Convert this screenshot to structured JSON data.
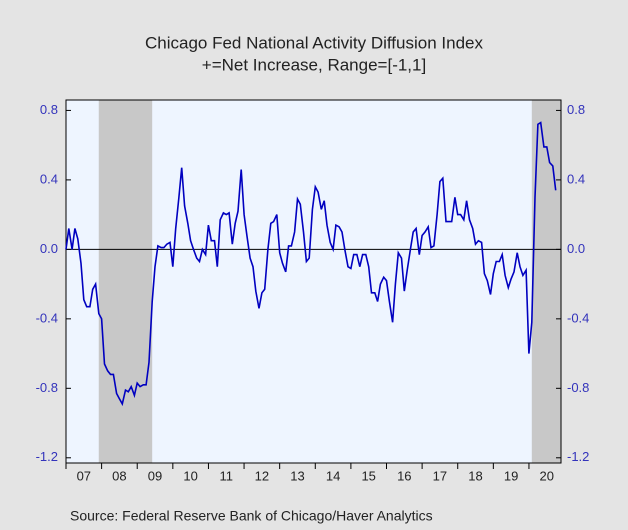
{
  "chart_data": {
    "type": "line",
    "title": "Chicago Fed National Activity Diffusion Index",
    "subtitle": "+=Net Increase, Range=[-1,1]",
    "source": "Source:  Federal Reserve Bank of Chicago/Haver Analytics",
    "x": [
      2007,
      2007.08,
      2007.17,
      2007.25,
      2007.33,
      2007.42,
      2007.5,
      2007.58,
      2007.67,
      2007.75,
      2007.83,
      2007.92,
      2008,
      2008.08,
      2008.17,
      2008.25,
      2008.33,
      2008.42,
      2008.5,
      2008.58,
      2008.67,
      2008.75,
      2008.83,
      2008.92,
      2009,
      2009.08,
      2009.17,
      2009.25,
      2009.33,
      2009.42,
      2009.5,
      2009.58,
      2009.67,
      2009.75,
      2009.83,
      2009.92,
      2010,
      2010.08,
      2010.17,
      2010.25,
      2010.33,
      2010.42,
      2010.5,
      2010.58,
      2010.67,
      2010.75,
      2010.83,
      2010.92,
      2011,
      2011.08,
      2011.17,
      2011.25,
      2011.33,
      2011.42,
      2011.5,
      2011.58,
      2011.67,
      2011.75,
      2011.83,
      2011.92,
      2012,
      2012.08,
      2012.17,
      2012.25,
      2012.33,
      2012.42,
      2012.5,
      2012.58,
      2012.67,
      2012.75,
      2012.83,
      2012.92,
      2013,
      2013.08,
      2013.17,
      2013.25,
      2013.33,
      2013.42,
      2013.5,
      2013.58,
      2013.67,
      2013.75,
      2013.83,
      2013.92,
      2014,
      2014.08,
      2014.17,
      2014.25,
      2014.33,
      2014.42,
      2014.5,
      2014.58,
      2014.67,
      2014.75,
      2014.83,
      2014.92,
      2015,
      2015.08,
      2015.17,
      2015.25,
      2015.33,
      2015.42,
      2015.5,
      2015.58,
      2015.67,
      2015.75,
      2015.83,
      2015.92,
      2016,
      2016.08,
      2016.17,
      2016.25,
      2016.33,
      2016.42,
      2016.5,
      2016.58,
      2016.67,
      2016.75,
      2016.83,
      2016.92,
      2017,
      2017.08,
      2017.17,
      2017.25,
      2017.33,
      2017.42,
      2017.5,
      2017.58,
      2017.67,
      2017.75,
      2017.83,
      2017.92,
      2018,
      2018.08,
      2018.17,
      2018.25,
      2018.33,
      2018.42,
      2018.5,
      2018.58,
      2018.67,
      2018.75,
      2018.83,
      2018.92,
      2019,
      2019.08,
      2019.17,
      2019.25,
      2019.33,
      2019.42,
      2019.5,
      2019.58,
      2019.67,
      2019.75,
      2019.83,
      2019.92,
      2020,
      2020.08,
      2020.17,
      2020.25,
      2020.33,
      2020.42,
      2020.5,
      2020.58,
      2020.67,
      2020.75
    ],
    "series": [
      {
        "color": "#0000c0",
        "values": [
          0.0,
          0.12,
          0.0,
          0.12,
          0.06,
          -0.08,
          -0.29,
          -0.33,
          -0.33,
          -0.23,
          -0.2,
          -0.37,
          -0.4,
          -0.66,
          -0.7,
          -0.72,
          -0.72,
          -0.83,
          -0.86,
          -0.89,
          -0.81,
          -0.82,
          -0.79,
          -0.84,
          -0.77,
          -0.79,
          -0.78,
          -0.78,
          -0.65,
          -0.3,
          -0.1,
          0.02,
          0.01,
          0.01,
          0.03,
          0.04,
          -0.1,
          0.12,
          0.3,
          0.47,
          0.25,
          0.15,
          0.05,
          0.0,
          -0.05,
          -0.07,
          0.0,
          -0.03,
          0.14,
          0.05,
          0.05,
          -0.1,
          0.17,
          0.21,
          0.2,
          0.21,
          0.03,
          0.15,
          0.22,
          0.46,
          0.2,
          0.08,
          -0.05,
          -0.1,
          -0.24,
          -0.34,
          -0.25,
          -0.23,
          0.0,
          0.15,
          0.16,
          0.2,
          -0.02,
          -0.08,
          -0.13,
          0.02,
          0.02,
          0.1,
          0.29,
          0.26,
          0.1,
          -0.07,
          -0.05,
          0.23,
          0.36,
          0.33,
          0.23,
          0.28,
          0.14,
          0.04,
          0.0,
          0.14,
          0.13,
          0.1,
          0.0,
          -0.1,
          -0.11,
          -0.03,
          -0.03,
          -0.1,
          -0.03,
          -0.03,
          -0.1,
          -0.25,
          -0.25,
          -0.3,
          -0.2,
          -0.16,
          -0.18,
          -0.3,
          -0.42,
          -0.2,
          -0.02,
          -0.05,
          -0.24,
          -0.12,
          0.0,
          0.1,
          0.12,
          -0.03,
          0.08,
          0.1,
          0.13,
          0.01,
          0.02,
          0.2,
          0.39,
          0.41,
          0.16,
          0.16,
          0.16,
          0.3,
          0.2,
          0.2,
          0.17,
          0.28,
          0.17,
          0.12,
          0.03,
          0.05,
          0.04,
          -0.14,
          -0.18,
          -0.26,
          -0.14,
          -0.07,
          -0.07,
          -0.03,
          -0.15,
          -0.22,
          -0.17,
          -0.13,
          -0.02,
          -0.1,
          -0.15,
          -0.12,
          -0.6,
          -0.42,
          0.3,
          0.72,
          0.73,
          0.59,
          0.59,
          0.5,
          0.48,
          0.34
        ]
      }
    ],
    "recessions": [
      [
        2007.92,
        2009.42
      ],
      [
        2020.08,
        2020.9
      ]
    ],
    "xlim": [
      2007,
      2020.9
    ],
    "xticks": [
      {
        "value": 2007,
        "label": "07"
      },
      {
        "value": 2008,
        "label": "08"
      },
      {
        "value": 2009,
        "label": "09"
      },
      {
        "value": 2010,
        "label": "10"
      },
      {
        "value": 2011,
        "label": "11"
      },
      {
        "value": 2012,
        "label": "12"
      },
      {
        "value": 2013,
        "label": "13"
      },
      {
        "value": 2014,
        "label": "14"
      },
      {
        "value": 2015,
        "label": "15"
      },
      {
        "value": 2016,
        "label": "16"
      },
      {
        "value": 2017,
        "label": "17"
      },
      {
        "value": 2018,
        "label": "18"
      },
      {
        "value": 2019,
        "label": "19"
      },
      {
        "value": 2020,
        "label": "20"
      }
    ],
    "ylim": [
      -1.23,
      0.86
    ],
    "yticks": [
      0.8,
      0.4,
      {
        "value": 0,
        "label": "0.0"
      },
      -0.4,
      -0.8,
      -1.2
    ],
    "y2lim": [
      -1.23,
      0.86
    ],
    "y2ticks": [
      0.8,
      0.4,
      {
        "value": 0,
        "label": "0.0"
      },
      -0.4,
      -0.8,
      -1.2
    ]
  }
}
